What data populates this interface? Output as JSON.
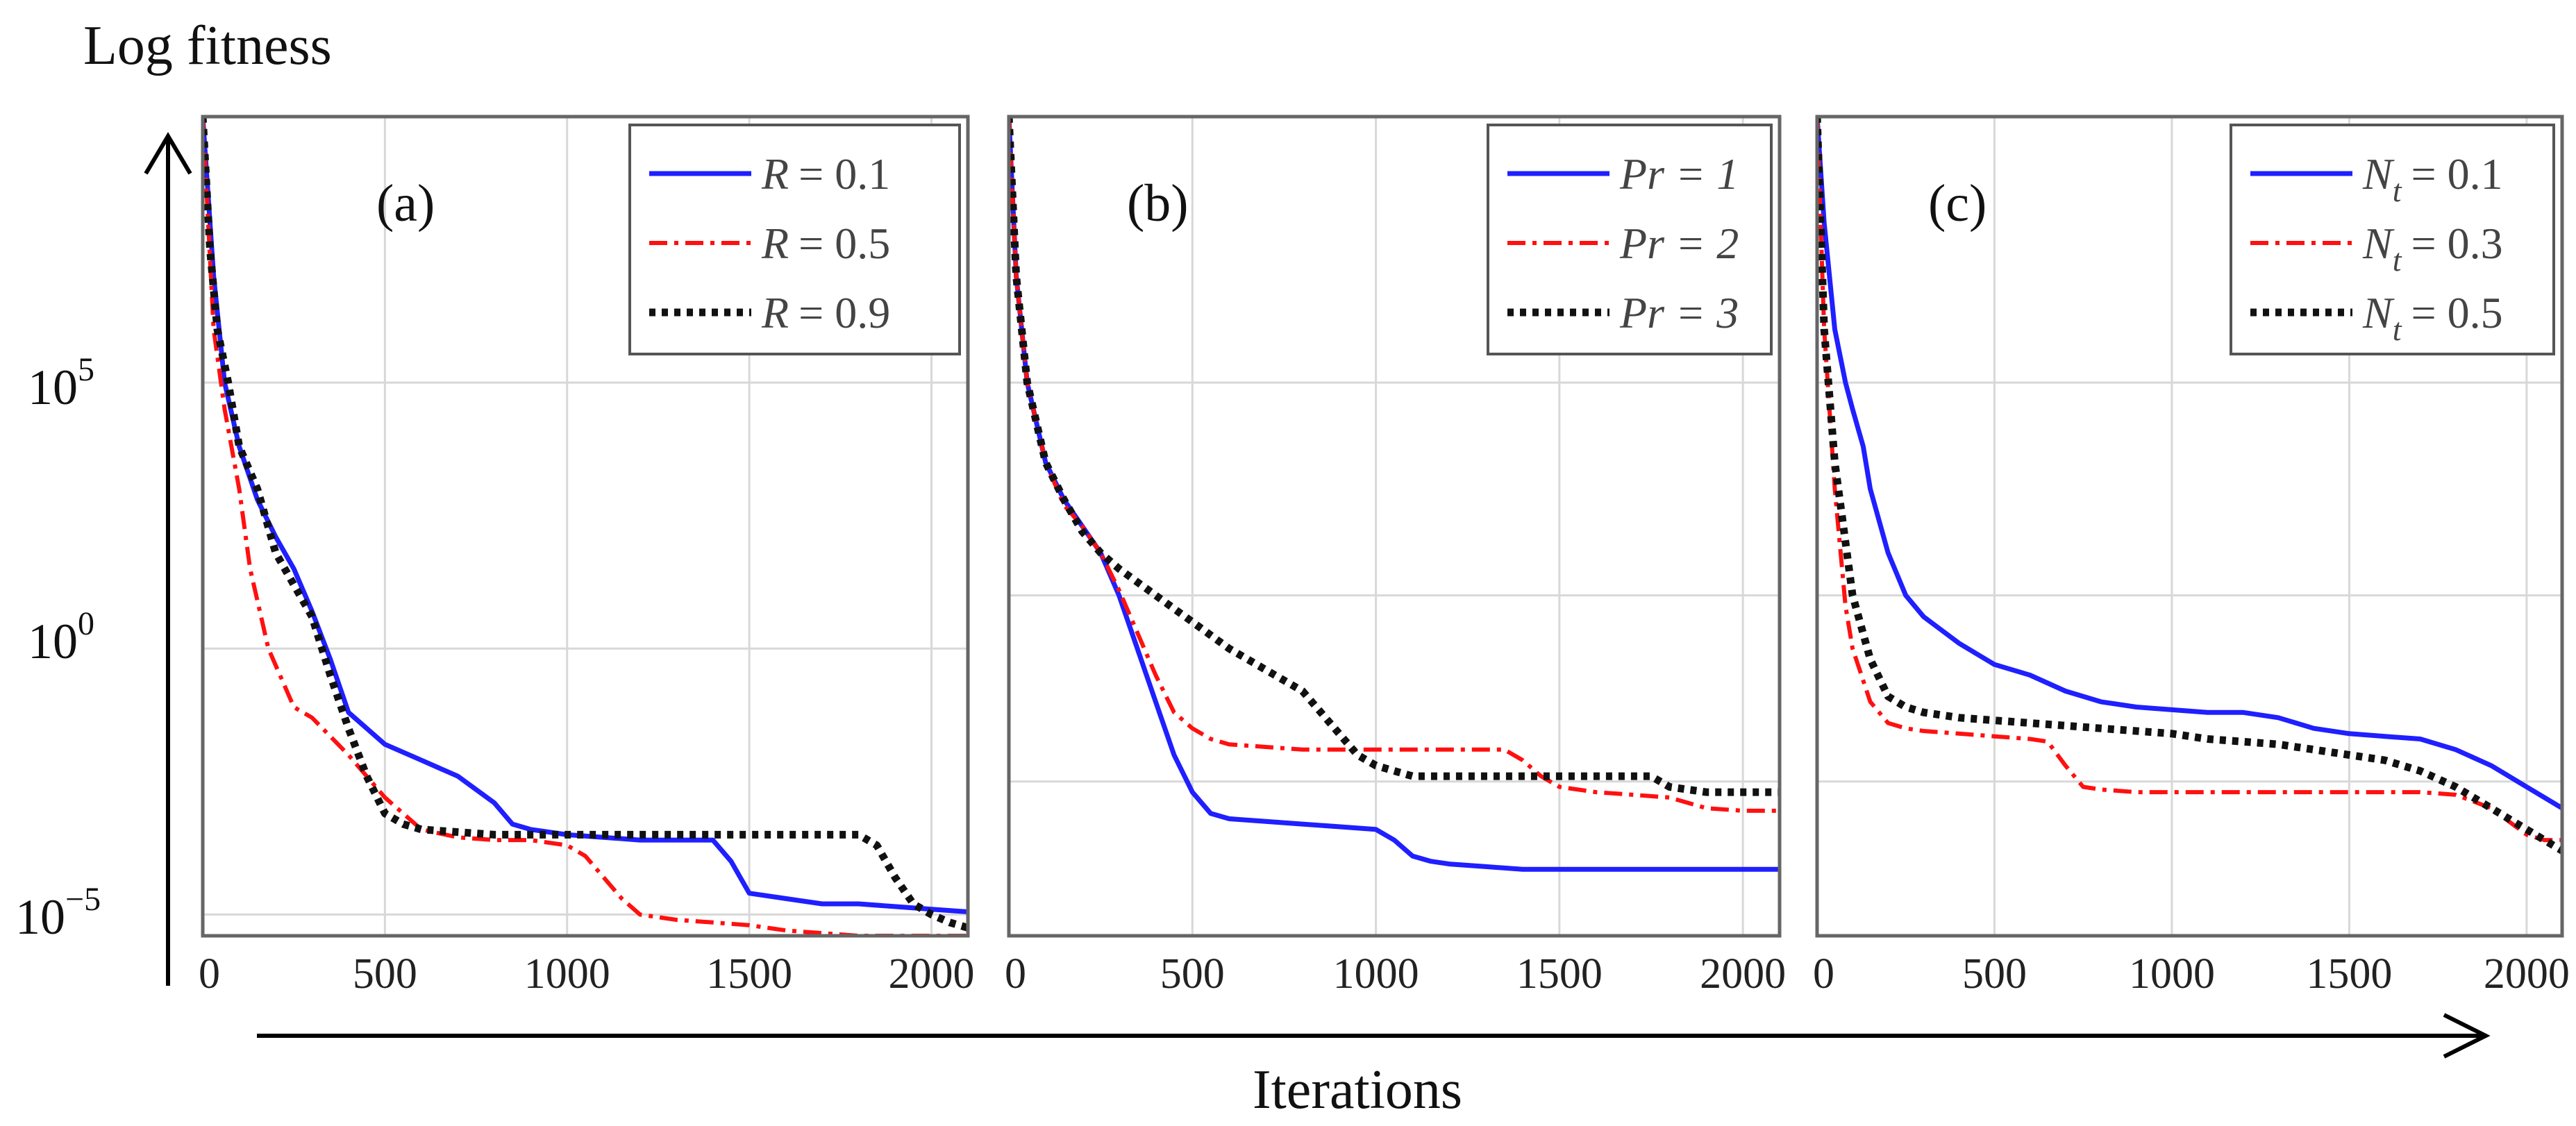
{
  "figure": {
    "y_axis_title": "Log fitness",
    "x_axis_title": "Iterations",
    "y_tick_labels": [
      {
        "base": "10",
        "exp": "5",
        "value": 5
      },
      {
        "base": "10",
        "exp": "0",
        "value": 0
      },
      {
        "base": "10",
        "exp": "−5",
        "value": -5
      }
    ]
  },
  "colors": {
    "blue": "#1f1fff",
    "red": "#ff1010",
    "black": "#111111",
    "grid": "#d8d8d8",
    "frame": "#666666"
  },
  "chart_data": [
    {
      "type": "line",
      "panel_label": "(a)",
      "xlabel": "Iterations",
      "ylabel": "Log fitness (log10)",
      "xlim": [
        0,
        2100
      ],
      "ylim": [
        -5.4,
        10
      ],
      "x_ticks": [
        0,
        500,
        1000,
        1500,
        2000
      ],
      "x_tick_labels": [
        "0",
        "500",
        "1000",
        "1500",
        "2000"
      ],
      "y_gridlines": [
        5,
        0,
        -5
      ],
      "legend_position": "top-right",
      "series": [
        {
          "name": "R = 0.1",
          "legend_var": "R",
          "legend_val": "= 0.1",
          "color": "#1f1fff",
          "style": "solid",
          "x": [
            0,
            30,
            60,
            100,
            150,
            200,
            250,
            300,
            350,
            400,
            500,
            600,
            700,
            800,
            850,
            900,
            1000,
            1100,
            1200,
            1300,
            1400,
            1450,
            1500,
            1600,
            1700,
            1800,
            1900,
            2000,
            2100
          ],
          "y": [
            10,
            7.0,
            5.0,
            3.8,
            2.8,
            2.1,
            1.5,
            0.7,
            -0.2,
            -1.2,
            -1.8,
            -2.1,
            -2.4,
            -2.9,
            -3.3,
            -3.4,
            -3.5,
            -3.55,
            -3.6,
            -3.6,
            -3.6,
            -4.0,
            -4.6,
            -4.7,
            -4.8,
            -4.8,
            -4.85,
            -4.9,
            -4.95
          ]
        },
        {
          "name": "R = 0.5",
          "legend_var": "R",
          "legend_val": "= 0.5",
          "color": "#ff1010",
          "style": "dashdot",
          "x": [
            0,
            30,
            60,
            100,
            130,
            180,
            250,
            300,
            400,
            500,
            600,
            700,
            800,
            900,
            1000,
            1050,
            1100,
            1150,
            1200,
            1300,
            1400,
            1500,
            1600,
            1700,
            1800,
            1900,
            2000,
            2100
          ],
          "y": [
            10,
            6.0,
            4.5,
            3.0,
            1.5,
            0.0,
            -1.1,
            -1.3,
            -2.0,
            -2.8,
            -3.4,
            -3.55,
            -3.6,
            -3.6,
            -3.7,
            -3.9,
            -4.3,
            -4.7,
            -5.0,
            -5.1,
            -5.15,
            -5.2,
            -5.3,
            -5.35,
            -5.4,
            -5.4,
            -5.4,
            -5.4
          ]
        },
        {
          "name": "R = 0.9",
          "legend_var": "R",
          "legend_val": "= 0.9",
          "color": "#111111",
          "style": "dotted",
          "x": [
            0,
            20,
            40,
            70,
            100,
            150,
            200,
            250,
            300,
            350,
            400,
            450,
            500,
            550,
            600,
            700,
            800,
            1000,
            1200,
            1400,
            1600,
            1700,
            1800,
            1850,
            1900,
            1950,
            2000,
            2050,
            2100
          ],
          "y": [
            10,
            7.5,
            6.0,
            5.0,
            3.8,
            3.0,
            1.8,
            1.2,
            0.6,
            -0.5,
            -1.5,
            -2.4,
            -3.1,
            -3.3,
            -3.4,
            -3.45,
            -3.5,
            -3.5,
            -3.5,
            -3.5,
            -3.5,
            -3.5,
            -3.5,
            -3.7,
            -4.3,
            -4.8,
            -5.0,
            -5.15,
            -5.25
          ]
        }
      ]
    },
    {
      "type": "line",
      "panel_label": "(b)",
      "xlabel": "Iterations",
      "ylabel": "Log fitness (log10)",
      "xlim": [
        0,
        2100
      ],
      "ylim": [
        -5.4,
        10
      ],
      "x_ticks": [
        0,
        500,
        1000,
        1500,
        2000
      ],
      "x_tick_labels": [
        "0",
        "500",
        "1000",
        "1500",
        "2000"
      ],
      "y_gridlines": [
        5,
        1,
        -2.5
      ],
      "legend_position": "top-right",
      "series": [
        {
          "name": "Pr = 1",
          "legend_var": "Pr = 1",
          "legend_val": "",
          "color": "#1f1fff",
          "style": "solid",
          "x": [
            0,
            20,
            50,
            100,
            150,
            200,
            250,
            300,
            350,
            400,
            450,
            500,
            550,
            600,
            700,
            800,
            900,
            1000,
            1050,
            1100,
            1150,
            1200,
            1300,
            1400,
            1600,
            1800,
            2000,
            2100
          ],
          "y": [
            10,
            7.0,
            5.0,
            3.5,
            2.8,
            2.3,
            1.8,
            1.0,
            0.0,
            -1.0,
            -2.0,
            -2.7,
            -3.1,
            -3.2,
            -3.25,
            -3.3,
            -3.35,
            -3.4,
            -3.6,
            -3.9,
            -4.0,
            -4.05,
            -4.1,
            -4.15,
            -4.15,
            -4.15,
            -4.15,
            -4.15
          ]
        },
        {
          "name": "Pr = 2",
          "legend_var": "Pr = 2",
          "legend_val": "",
          "color": "#ff1010",
          "style": "dashdot",
          "x": [
            0,
            20,
            50,
            100,
            150,
            200,
            250,
            300,
            350,
            400,
            450,
            500,
            550,
            600,
            700,
            800,
            1000,
            1200,
            1350,
            1400,
            1450,
            1500,
            1600,
            1700,
            1800,
            1900,
            2000,
            2100
          ],
          "y": [
            10,
            7.0,
            5.0,
            3.5,
            2.7,
            2.3,
            1.8,
            1.1,
            0.3,
            -0.5,
            -1.2,
            -1.5,
            -1.7,
            -1.8,
            -1.85,
            -1.9,
            -1.9,
            -1.9,
            -1.9,
            -2.1,
            -2.4,
            -2.6,
            -2.7,
            -2.75,
            -2.8,
            -3.0,
            -3.05,
            -3.05
          ]
        },
        {
          "name": "Pr = 3",
          "legend_var": "Pr = 3",
          "legend_val": "",
          "color": "#111111",
          "style": "dotted",
          "x": [
            0,
            20,
            50,
            100,
            150,
            200,
            250,
            300,
            400,
            500,
            600,
            700,
            800,
            900,
            950,
            1000,
            1050,
            1100,
            1200,
            1400,
            1600,
            1700,
            1750,
            1800,
            1900,
            2000,
            2100
          ],
          "y": [
            10,
            7.0,
            5.0,
            3.5,
            2.8,
            2.2,
            1.8,
            1.5,
            1.0,
            0.5,
            0.0,
            -0.4,
            -0.8,
            -1.6,
            -2.0,
            -2.2,
            -2.3,
            -2.4,
            -2.4,
            -2.4,
            -2.4,
            -2.4,
            -2.4,
            -2.6,
            -2.7,
            -2.7,
            -2.7
          ]
        }
      ]
    },
    {
      "type": "line",
      "panel_label": "(c)",
      "xlabel": "Iterations",
      "ylabel": "Log fitness (log10)",
      "xlim": [
        0,
        2100
      ],
      "ylim": [
        -5.4,
        10
      ],
      "x_ticks": [
        0,
        500,
        1000,
        1500,
        2000
      ],
      "x_tick_labels": [
        "0",
        "500",
        "1000",
        "1500",
        "2000"
      ],
      "y_gridlines": [
        5,
        1,
        -2.5
      ],
      "legend_position": "top-right",
      "series": [
        {
          "name": "N_t = 0.1",
          "legend_var": "N",
          "legend_sub": "t",
          "legend_val": "= 0.1",
          "color": "#1f1fff",
          "style": "solid",
          "x": [
            0,
            20,
            50,
            80,
            100,
            130,
            150,
            200,
            250,
            300,
            400,
            500,
            600,
            700,
            800,
            900,
            1000,
            1100,
            1200,
            1300,
            1400,
            1500,
            1600,
            1700,
            1800,
            1900,
            2000,
            2100
          ],
          "y": [
            10,
            8.0,
            6.0,
            5.0,
            4.5,
            3.8,
            3.0,
            1.8,
            1.0,
            0.6,
            0.1,
            -0.3,
            -0.5,
            -0.8,
            -1.0,
            -1.1,
            -1.15,
            -1.2,
            -1.2,
            -1.3,
            -1.5,
            -1.6,
            -1.65,
            -1.7,
            -1.9,
            -2.2,
            -2.6,
            -3.0
          ]
        },
        {
          "name": "N_t = 0.3",
          "legend_var": "N",
          "legend_sub": "t",
          "legend_val": "= 0.3",
          "color": "#ff1010",
          "style": "dashdot",
          "x": [
            0,
            20,
            50,
            80,
            100,
            150,
            200,
            250,
            300,
            400,
            500,
            600,
            650,
            700,
            750,
            800,
            900,
            1000,
            1200,
            1400,
            1600,
            1700,
            1800,
            1900,
            2000,
            2050,
            2100
          ],
          "y": [
            10,
            6.0,
            3.0,
            0.8,
            0.0,
            -1.0,
            -1.4,
            -1.5,
            -1.55,
            -1.6,
            -1.65,
            -1.7,
            -1.75,
            -2.2,
            -2.6,
            -2.65,
            -2.7,
            -2.7,
            -2.7,
            -2.7,
            -2.7,
            -2.7,
            -2.75,
            -3.0,
            -3.5,
            -3.6,
            -3.6
          ]
        },
        {
          "name": "N_t = 0.5",
          "legend_var": "N",
          "legend_sub": "t",
          "legend_val": "= 0.5",
          "color": "#111111",
          "style": "dotted",
          "x": [
            0,
            20,
            50,
            80,
            100,
            150,
            200,
            250,
            300,
            400,
            500,
            600,
            700,
            800,
            900,
            1000,
            1100,
            1200,
            1300,
            1400,
            1500,
            1600,
            1700,
            1800,
            1900,
            2000,
            2100
          ],
          "y": [
            10,
            6.0,
            3.5,
            2.0,
            1.0,
            -0.2,
            -0.9,
            -1.1,
            -1.2,
            -1.3,
            -1.35,
            -1.4,
            -1.45,
            -1.5,
            -1.55,
            -1.6,
            -1.7,
            -1.75,
            -1.8,
            -1.9,
            -2.0,
            -2.1,
            -2.3,
            -2.6,
            -3.0,
            -3.4,
            -3.8
          ]
        }
      ]
    }
  ]
}
